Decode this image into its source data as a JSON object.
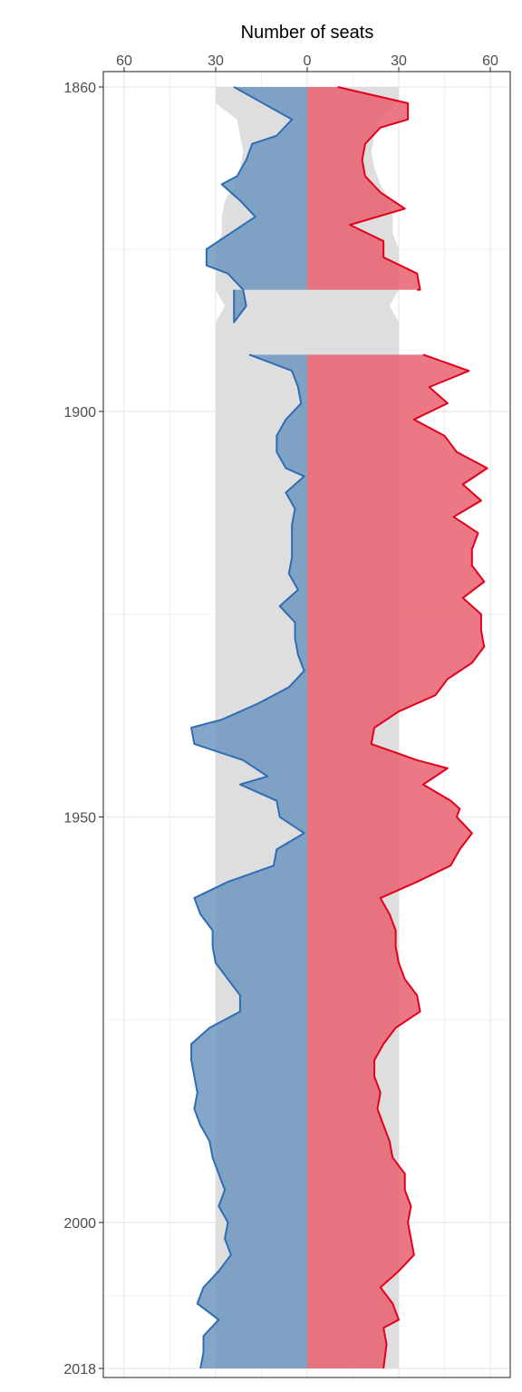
{
  "chart_data": {
    "type": "area",
    "orientation": "vertical-time-axis",
    "title": "",
    "xlabel": "Number of seats",
    "ylabel": "",
    "xlim": [
      -60,
      60
    ],
    "ylim": [
      1860,
      2018
    ],
    "x_ticks": [
      -60,
      -30,
      0,
      30,
      60
    ],
    "x_tick_labels": [
      "60",
      "30",
      "0",
      "30",
      "60"
    ],
    "y_ticks": [
      1860,
      1900,
      1950,
      2000,
      2018
    ],
    "y_tick_labels": [
      "1860",
      "1900",
      "1950",
      "2000",
      "2018"
    ],
    "grid": true,
    "legend": "none",
    "colors": {
      "left_line": "#2E6DB4",
      "left_fill": "#6E96BE",
      "right_line": "#E3001B",
      "right_fill": "#E8606E",
      "band": "#DEDEDE",
      "grid": "#EBEBEB",
      "panel_border": "#333333"
    },
    "band": [
      {
        "year": 1860,
        "value": 30
      },
      {
        "year": 1862,
        "value": 30
      },
      {
        "year": 1864,
        "value": 23
      },
      {
        "year": 1866,
        "value": 22
      },
      {
        "year": 1868,
        "value": 21
      },
      {
        "year": 1870,
        "value": 22
      },
      {
        "year": 1872,
        "value": 24
      },
      {
        "year": 1874,
        "value": 27
      },
      {
        "year": 1876,
        "value": 28
      },
      {
        "year": 1878,
        "value": 28
      },
      {
        "year": 1880,
        "value": 30
      },
      {
        "year": 1882,
        "value": 30
      },
      {
        "year": 1884,
        "value": 30
      },
      {
        "year": 1885,
        "value": 30
      },
      {
        "year": 1887,
        "value": 27
      },
      {
        "year": 1889,
        "value": 30
      },
      {
        "year": 1893,
        "value": 30
      },
      {
        "year": 2018,
        "value": 30
      }
    ],
    "series": [
      {
        "side": "left",
        "segments": [
          [
            {
              "year": 1860,
              "value": 24
            },
            {
              "year": 1864,
              "value": 5
            },
            {
              "year": 1866,
              "value": 10
            },
            {
              "year": 1867,
              "value": 18
            },
            {
              "year": 1869,
              "value": 20
            },
            {
              "year": 1871,
              "value": 23
            },
            {
              "year": 1872,
              "value": 28
            },
            {
              "year": 1874,
              "value": 22
            },
            {
              "year": 1876,
              "value": 17
            },
            {
              "year": 1878,
              "value": 25
            },
            {
              "year": 1880,
              "value": 33
            },
            {
              "year": 1882,
              "value": 33
            },
            {
              "year": 1883,
              "value": 26
            },
            {
              "year": 1885,
              "value": 21
            },
            {
              "year": 1887,
              "value": 20
            },
            {
              "year": 1889,
              "value": 24
            },
            {
              "year": 1885,
              "value": 24
            }
          ],
          [
            {
              "year": 1893,
              "value": 19
            },
            {
              "year": 1895,
              "value": 5
            },
            {
              "year": 1897,
              "value": 3
            },
            {
              "year": 1899,
              "value": 2
            },
            {
              "year": 1901,
              "value": 7
            },
            {
              "year": 1903,
              "value": 10
            },
            {
              "year": 1905,
              "value": 10
            },
            {
              "year": 1907,
              "value": 7
            },
            {
              "year": 1908,
              "value": 1
            },
            {
              "year": 1910,
              "value": 7
            },
            {
              "year": 1912,
              "value": 4
            },
            {
              "year": 1914,
              "value": 5
            },
            {
              "year": 1916,
              "value": 5
            },
            {
              "year": 1918,
              "value": 5
            },
            {
              "year": 1920,
              "value": 6
            },
            {
              "year": 1922,
              "value": 3
            },
            {
              "year": 1924,
              "value": 9
            },
            {
              "year": 1926,
              "value": 4
            },
            {
              "year": 1928,
              "value": 4
            },
            {
              "year": 1930,
              "value": 3
            },
            {
              "year": 1932,
              "value": 1
            },
            {
              "year": 1934,
              "value": 6
            },
            {
              "year": 1936,
              "value": 16
            },
            {
              "year": 1938,
              "value": 28
            },
            {
              "year": 1939,
              "value": 38
            },
            {
              "year": 1941,
              "value": 37
            },
            {
              "year": 1943,
              "value": 21
            },
            {
              "year": 1945,
              "value": 13
            },
            {
              "year": 1946,
              "value": 22
            },
            {
              "year": 1948,
              "value": 10
            },
            {
              "year": 1950,
              "value": 9
            },
            {
              "year": 1952,
              "value": 1
            },
            {
              "year": 1954,
              "value": 10
            },
            {
              "year": 1956,
              "value": 11
            },
            {
              "year": 1958,
              "value": 26
            },
            {
              "year": 1960,
              "value": 37
            },
            {
              "year": 1962,
              "value": 35
            },
            {
              "year": 1964,
              "value": 31
            },
            {
              "year": 1966,
              "value": 31
            },
            {
              "year": 1968,
              "value": 30
            },
            {
              "year": 1970,
              "value": 26
            },
            {
              "year": 1972,
              "value": 22
            },
            {
              "year": 1974,
              "value": 22
            },
            {
              "year": 1976,
              "value": 32
            },
            {
              "year": 1978,
              "value": 38
            },
            {
              "year": 1980,
              "value": 38
            },
            {
              "year": 1982,
              "value": 37
            },
            {
              "year": 1984,
              "value": 36
            },
            {
              "year": 1986,
              "value": 37
            },
            {
              "year": 1988,
              "value": 35
            },
            {
              "year": 1990,
              "value": 32
            },
            {
              "year": 1992,
              "value": 31
            },
            {
              "year": 1994,
              "value": 29
            },
            {
              "year": 1996,
              "value": 27
            },
            {
              "year": 1998,
              "value": 29
            },
            {
              "year": 2000,
              "value": 26
            },
            {
              "year": 2002,
              "value": 27
            },
            {
              "year": 2004,
              "value": 25
            },
            {
              "year": 2006,
              "value": 29
            },
            {
              "year": 2008,
              "value": 34
            },
            {
              "year": 2010,
              "value": 36
            },
            {
              "year": 2012,
              "value": 29
            },
            {
              "year": 2014,
              "value": 34
            },
            {
              "year": 2016,
              "value": 34
            },
            {
              "year": 2018,
              "value": 35
            }
          ]
        ]
      },
      {
        "side": "right",
        "segments": [
          [
            {
              "year": 1860,
              "value": 10
            },
            {
              "year": 1862,
              "value": 33
            },
            {
              "year": 1864,
              "value": 33
            },
            {
              "year": 1865,
              "value": 24
            },
            {
              "year": 1867,
              "value": 19
            },
            {
              "year": 1869,
              "value": 18
            },
            {
              "year": 1871,
              "value": 19
            },
            {
              "year": 1873,
              "value": 24
            },
            {
              "year": 1875,
              "value": 32
            },
            {
              "year": 1877,
              "value": 14
            },
            {
              "year": 1879,
              "value": 25
            },
            {
              "year": 1881,
              "value": 25
            },
            {
              "year": 1883,
              "value": 36
            },
            {
              "year": 1885,
              "value": 37
            },
            {
              "year": 1885,
              "value": 36
            }
          ],
          [
            {
              "year": 1893,
              "value": 38
            },
            {
              "year": 1895,
              "value": 53
            },
            {
              "year": 1897,
              "value": 40
            },
            {
              "year": 1899,
              "value": 46
            },
            {
              "year": 1901,
              "value": 35
            },
            {
              "year": 1903,
              "value": 45
            },
            {
              "year": 1905,
              "value": 49
            },
            {
              "year": 1907,
              "value": 59
            },
            {
              "year": 1909,
              "value": 51
            },
            {
              "year": 1911,
              "value": 57
            },
            {
              "year": 1913,
              "value": 48
            },
            {
              "year": 1915,
              "value": 56
            },
            {
              "year": 1917,
              "value": 54
            },
            {
              "year": 1919,
              "value": 54
            },
            {
              "year": 1921,
              "value": 58
            },
            {
              "year": 1923,
              "value": 51
            },
            {
              "year": 1925,
              "value": 57
            },
            {
              "year": 1927,
              "value": 57
            },
            {
              "year": 1929,
              "value": 58
            },
            {
              "year": 1931,
              "value": 54
            },
            {
              "year": 1933,
              "value": 46
            },
            {
              "year": 1935,
              "value": 42
            },
            {
              "year": 1937,
              "value": 30
            },
            {
              "year": 1939,
              "value": 22
            },
            {
              "year": 1941,
              "value": 21
            },
            {
              "year": 1943,
              "value": 36
            },
            {
              "year": 1944,
              "value": 46
            },
            {
              "year": 1946,
              "value": 38
            },
            {
              "year": 1948,
              "value": 47
            },
            {
              "year": 1949,
              "value": 50
            },
            {
              "year": 1950,
              "value": 49
            },
            {
              "year": 1952,
              "value": 54
            },
            {
              "year": 1954,
              "value": 50
            },
            {
              "year": 1956,
              "value": 47
            },
            {
              "year": 1958,
              "value": 36
            },
            {
              "year": 1960,
              "value": 24
            },
            {
              "year": 1962,
              "value": 27
            },
            {
              "year": 1964,
              "value": 29
            },
            {
              "year": 1966,
              "value": 29
            },
            {
              "year": 1968,
              "value": 30
            },
            {
              "year": 1970,
              "value": 32
            },
            {
              "year": 1972,
              "value": 36
            },
            {
              "year": 1974,
              "value": 37
            },
            {
              "year": 1976,
              "value": 29
            },
            {
              "year": 1978,
              "value": 25
            },
            {
              "year": 1980,
              "value": 22
            },
            {
              "year": 1982,
              "value": 22
            },
            {
              "year": 1984,
              "value": 24
            },
            {
              "year": 1986,
              "value": 23
            },
            {
              "year": 1988,
              "value": 25
            },
            {
              "year": 1990,
              "value": 27
            },
            {
              "year": 1992,
              "value": 28
            },
            {
              "year": 1994,
              "value": 32
            },
            {
              "year": 1996,
              "value": 32
            },
            {
              "year": 1998,
              "value": 34
            },
            {
              "year": 2000,
              "value": 33
            },
            {
              "year": 2002,
              "value": 34
            },
            {
              "year": 2004,
              "value": 35
            },
            {
              "year": 2006,
              "value": 30
            },
            {
              "year": 2008,
              "value": 24
            },
            {
              "year": 2010,
              "value": 28
            },
            {
              "year": 2012,
              "value": 30
            },
            {
              "year": 2013,
              "value": 25
            },
            {
              "year": 2015,
              "value": 26
            },
            {
              "year": 2018,
              "value": 25
            }
          ]
        ]
      }
    ]
  }
}
